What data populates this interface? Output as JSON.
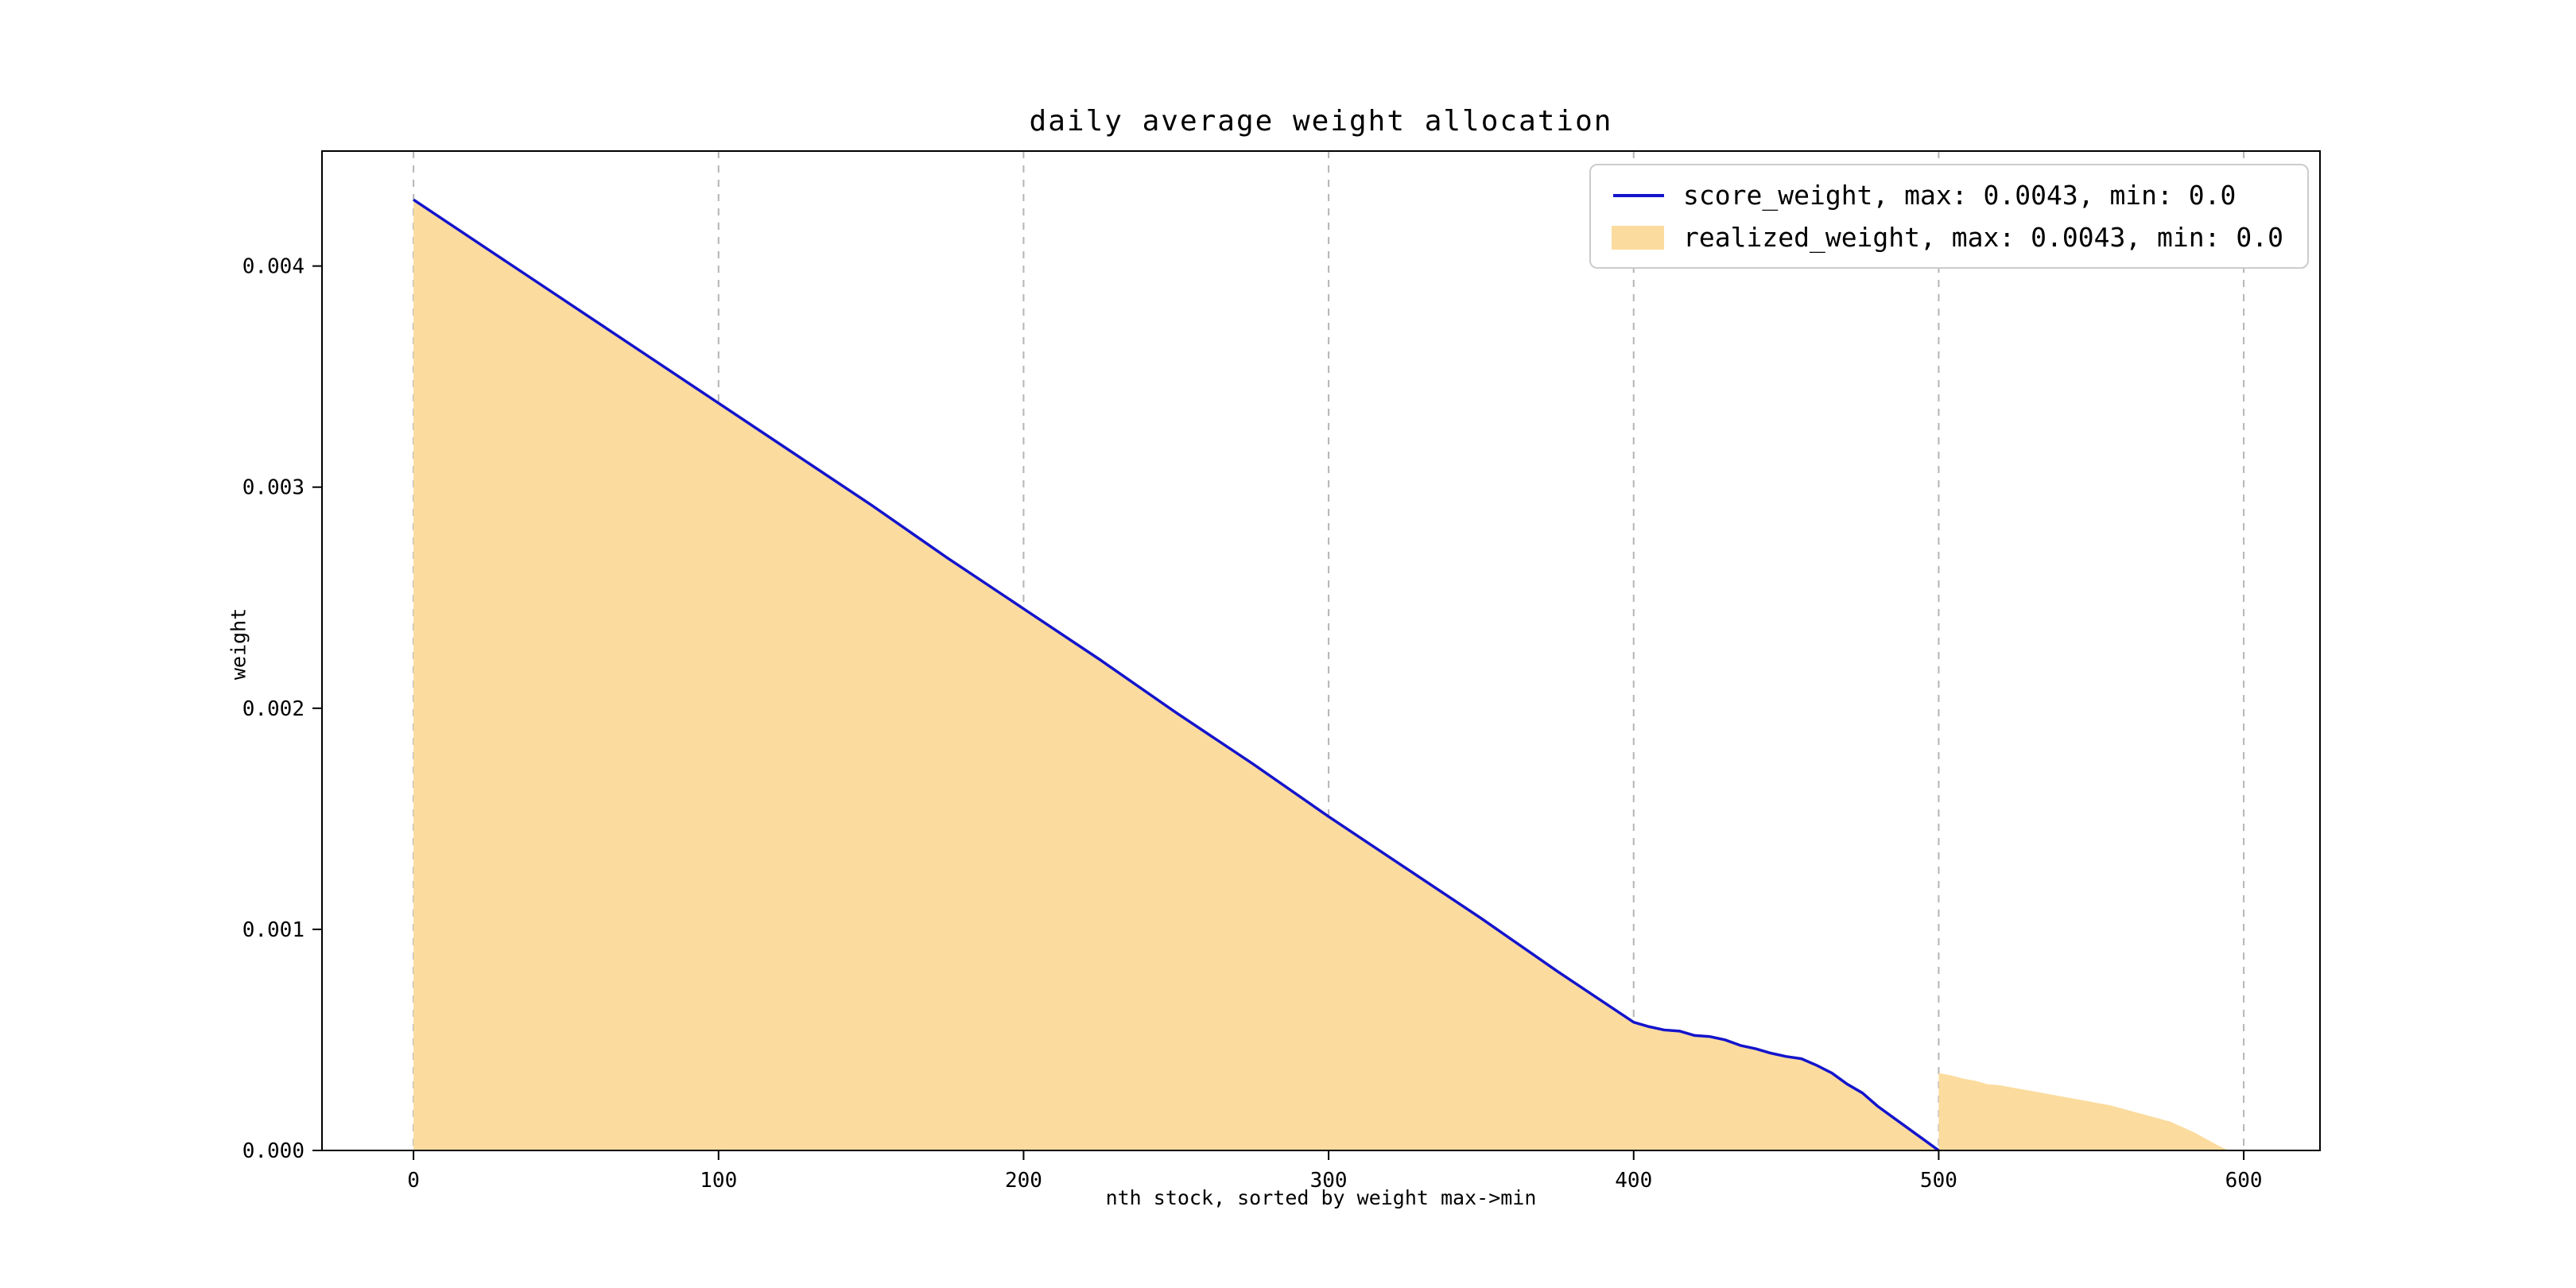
{
  "chart": {
    "colors": {
      "line": "#1414cc",
      "fill": "#fbdc9e",
      "grid": "#b5b5b5",
      "axis": "#000000",
      "legend_border": "#cccccc",
      "background": "#ffffff"
    },
    "legend": {
      "items": [
        {
          "swatch": "line",
          "label": "score_weight, max: 0.0043, min: 0.0"
        },
        {
          "swatch": "fill",
          "label": "realized_weight, max: 0.0043, min: 0.0"
        }
      ]
    }
  },
  "chart_data": {
    "type": "area",
    "title": "daily average weight allocation",
    "xlabel": "nth stock, sorted by weight max->min",
    "ylabel": "weight",
    "xlim": [
      -30,
      625
    ],
    "ylim": [
      0,
      0.00452
    ],
    "xticks": [
      0,
      100,
      200,
      300,
      400,
      500,
      600
    ],
    "yticks": [
      0,
      0.001,
      0.002,
      0.003,
      0.004
    ],
    "grid": "vertical dashed gridlines at x ticks",
    "legend_position": "upper right",
    "series": [
      {
        "name": "score_weight",
        "kind": "line",
        "max": 0.0043,
        "min": 0.0,
        "points": [
          [
            0,
            0.0043
          ],
          [
            25,
            0.00407
          ],
          [
            50,
            0.00384
          ],
          [
            75,
            0.00361
          ],
          [
            100,
            0.00338
          ],
          [
            125,
            0.00315
          ],
          [
            150,
            0.00292
          ],
          [
            175,
            0.00268
          ],
          [
            200,
            0.00245
          ],
          [
            225,
            0.00222
          ],
          [
            250,
            0.00198
          ],
          [
            275,
            0.00175
          ],
          [
            300,
            0.00151
          ],
          [
            325,
            0.00128
          ],
          [
            350,
            0.00105
          ],
          [
            375,
            0.00081
          ],
          [
            400,
            0.00058
          ],
          [
            405,
            0.00056
          ],
          [
            410,
            0.000545
          ],
          [
            415,
            0.00054
          ],
          [
            420,
            0.00052
          ],
          [
            425,
            0.000515
          ],
          [
            430,
            0.0005
          ],
          [
            435,
            0.000475
          ],
          [
            440,
            0.00046
          ],
          [
            445,
            0.00044
          ],
          [
            450,
            0.000425
          ],
          [
            455,
            0.000415
          ],
          [
            460,
            0.000385
          ],
          [
            465,
            0.00035
          ],
          [
            470,
            0.0003
          ],
          [
            475,
            0.00026
          ],
          [
            480,
            0.0002
          ],
          [
            485,
            0.00015
          ],
          [
            490,
            0.0001
          ],
          [
            495,
            5e-05
          ],
          [
            500,
            0.0
          ]
        ]
      },
      {
        "name": "realized_weight",
        "kind": "area",
        "max": 0.0043,
        "min": 0.0,
        "segments": [
          [
            [
              0,
              0.0043
            ],
            [
              25,
              0.00407
            ],
            [
              50,
              0.00384
            ],
            [
              75,
              0.00361
            ],
            [
              100,
              0.00338
            ],
            [
              125,
              0.00315
            ],
            [
              150,
              0.00292
            ],
            [
              175,
              0.00268
            ],
            [
              200,
              0.00245
            ],
            [
              225,
              0.00222
            ],
            [
              250,
              0.00198
            ],
            [
              275,
              0.00175
            ],
            [
              300,
              0.00151
            ],
            [
              325,
              0.00128
            ],
            [
              350,
              0.00105
            ],
            [
              375,
              0.00081
            ],
            [
              400,
              0.00058
            ],
            [
              405,
              0.00056
            ],
            [
              410,
              0.000545
            ],
            [
              415,
              0.00054
            ],
            [
              420,
              0.00052
            ],
            [
              425,
              0.000515
            ],
            [
              430,
              0.0005
            ],
            [
              435,
              0.000475
            ],
            [
              440,
              0.00046
            ],
            [
              445,
              0.00044
            ],
            [
              450,
              0.000425
            ],
            [
              455,
              0.000415
            ],
            [
              460,
              0.000385
            ],
            [
              465,
              0.00035
            ],
            [
              470,
              0.0003
            ],
            [
              475,
              0.00026
            ],
            [
              480,
              0.0002
            ],
            [
              485,
              0.00015
            ],
            [
              490,
              0.0001
            ],
            [
              495,
              5e-05
            ],
            [
              500,
              0.0
            ]
          ],
          [
            [
              500,
              0.00035
            ],
            [
              504,
              0.00034
            ],
            [
              508,
              0.000325
            ],
            [
              512,
              0.000315
            ],
            [
              516,
              0.0003
            ],
            [
              520,
              0.000295
            ],
            [
              524,
              0.000285
            ],
            [
              528,
              0.000275
            ],
            [
              532,
              0.000265
            ],
            [
              536,
              0.000255
            ],
            [
              540,
              0.000245
            ],
            [
              544,
              0.000235
            ],
            [
              548,
              0.000225
            ],
            [
              552,
              0.000215
            ],
            [
              556,
              0.000205
            ],
            [
              560,
              0.00019
            ],
            [
              564,
              0.000175
            ],
            [
              568,
              0.00016
            ],
            [
              572,
              0.000145
            ],
            [
              576,
              0.00013
            ],
            [
              580,
              0.000105
            ],
            [
              584,
              8e-05
            ],
            [
              588,
              5e-05
            ],
            [
              592,
              2e-05
            ],
            [
              595,
              0.0
            ]
          ]
        ]
      }
    ]
  }
}
